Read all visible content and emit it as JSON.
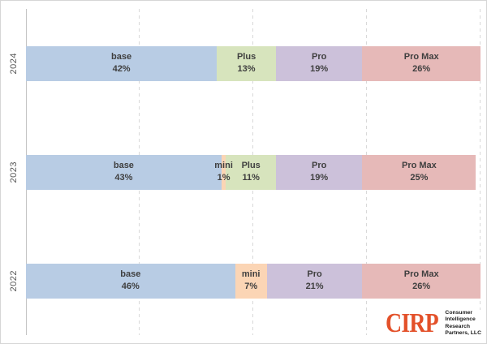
{
  "chart_data": {
    "type": "bar",
    "stacked": true,
    "orientation": "horizontal",
    "unit": "%",
    "xlim": [
      0,
      100
    ],
    "grid": "dashed-vertical",
    "gridlines_pct": [
      25,
      50,
      75,
      100
    ],
    "categories": [
      "2024",
      "2023",
      "2022"
    ],
    "segment_names": [
      "base",
      "mini",
      "Plus",
      "Pro",
      "Pro Max"
    ],
    "rows": [
      {
        "year": "2024",
        "segments": [
          {
            "label": "base",
            "pct": 42,
            "value": "42%",
            "color": "base"
          },
          {
            "label": "Plus",
            "pct": 13,
            "value": "13%",
            "color": "Plus"
          },
          {
            "label": "Pro",
            "pct": 19,
            "value": "19%",
            "color": "Pro"
          },
          {
            "label": "Pro Max",
            "pct": 26,
            "value": "26%",
            "color": "Pro Max"
          }
        ]
      },
      {
        "year": "2023",
        "segments": [
          {
            "label": "base",
            "pct": 43,
            "value": "43%",
            "color": "base"
          },
          {
            "label": "mini",
            "pct": 1,
            "value": "1%",
            "color": "mini"
          },
          {
            "label": "Plus",
            "pct": 11,
            "value": "11%",
            "color": "Plus"
          },
          {
            "label": "Pro",
            "pct": 19,
            "value": "19%",
            "color": "Pro"
          },
          {
            "label": "Pro Max",
            "pct": 25,
            "value": "25%",
            "color": "Pro Max"
          }
        ]
      },
      {
        "year": "2022",
        "segments": [
          {
            "label": "base",
            "pct": 46,
            "value": "46%",
            "color": "base"
          },
          {
            "label": "mini",
            "pct": 7,
            "value": "7%",
            "color": "mini"
          },
          {
            "label": "Pro",
            "pct": 21,
            "value": "21%",
            "color": "Pro"
          },
          {
            "label": "Pro Max",
            "pct": 26,
            "value": "26%",
            "color": "Pro Max"
          }
        ]
      }
    ]
  },
  "colors": {
    "base": "#b8cce4",
    "mini": "#fbd5b5",
    "Plus": "#d7e4bd",
    "Pro": "#ccc1da",
    "Pro Max": "#e6b9b8",
    "label_text": "#3f3f3f",
    "axis_line": "#c4c4c4",
    "gridline": "#d9d9d9",
    "logo_orange": "#e3512a"
  },
  "logo": {
    "brand": "CIRP",
    "lines": [
      "Consumer",
      "Intelligence",
      "Research",
      "Partners, LLC"
    ]
  }
}
